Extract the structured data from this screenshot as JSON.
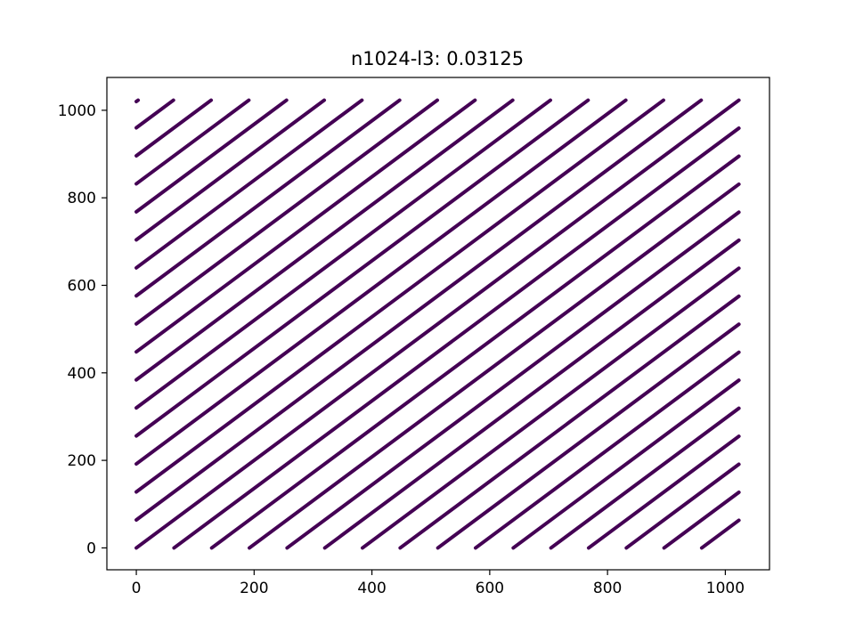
{
  "chart_data": {
    "type": "line",
    "title": "n1024-l3: 0.03125",
    "xlabel": "",
    "ylabel": "",
    "xlim": [
      -50,
      1075
    ],
    "ylim": [
      -50,
      1075
    ],
    "x_ticks": [
      0,
      200,
      400,
      600,
      800,
      1000
    ],
    "y_ticks": [
      0,
      200,
      400,
      600,
      800,
      1000
    ],
    "x_tick_labels": [
      "0",
      "200",
      "400",
      "600",
      "800",
      "1000"
    ],
    "y_tick_labels": [
      "0",
      "200",
      "400",
      "600",
      "800",
      "1000"
    ],
    "series_description": "Diagonal lines y = x + offset clipped to [0, 1023]; one line per offset",
    "line_slope": 1,
    "offsets": [
      -960,
      -896,
      -832,
      -768,
      -704,
      -640,
      -576,
      -512,
      -448,
      -384,
      -320,
      -256,
      -192,
      -128,
      -64,
      0,
      64,
      128,
      192,
      256,
      320,
      384,
      448,
      512,
      576,
      640,
      704,
      768,
      832,
      896,
      960,
      1020
    ],
    "domain": [
      0,
      1023
    ],
    "line_color": "#440154",
    "grid": false,
    "legend": "none"
  }
}
